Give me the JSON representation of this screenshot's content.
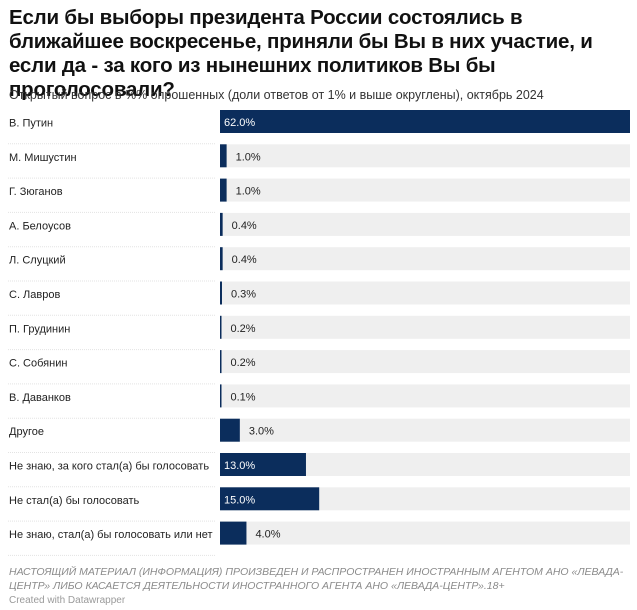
{
  "title": "Если бы выборы президента России состоялись в ближайшее воскресенье, приняли бы Вы в них участие, и если да - за кого из нынешних политиков Вы бы проголосовали?",
  "subtitle": "Открытый вопрос в %% опрошенных (доли ответов от 1% и выше округлены), октябрь 2024",
  "footer_note": "НАСТОЯЩИЙ МАТЕРИАЛ (ИНФОРМАЦИЯ) ПРОИЗВЕДЕН И РАСПРОСТРАНЕН ИНОСТРАННЫМ АГЕНТОМ АНО «ЛЕВАДА-ЦЕНТР» ЛИБО КАСАЕТСЯ ДЕЯТЕЛЬНОСТИ ИНОСТРАННОГО АГЕНТА АНО «ЛЕВАДА-ЦЕНТР».18+",
  "credit": "Created with Datawrapper",
  "colors": {
    "bar": "#0b2d5c",
    "track": "#efefef",
    "label_on_bar": "#ffffff",
    "label_off_bar": "#222222"
  },
  "chart_data": {
    "type": "bar",
    "orientation": "horizontal",
    "title": "Если бы выборы президента России состоялись в ближайшее воскресенье, приняли бы Вы в них участие, и если да - за кого из нынешних политиков Вы бы проголосовали?",
    "categories": [
      "В. Путин",
      "М. Мишустин",
      "Г. Зюганов",
      "А. Белоусов",
      "Л. Слуцкий",
      "С. Лавров",
      "П. Грудинин",
      "С. Собянин",
      "В. Даванков",
      "Другое",
      "Не знаю, за кого стал(а) бы голосовать",
      "Не стал(а) бы голосовать",
      "Не знаю, стал(а) бы голосовать или нет"
    ],
    "values": [
      62.0,
      1.0,
      1.0,
      0.4,
      0.4,
      0.3,
      0.2,
      0.2,
      0.1,
      3.0,
      13.0,
      15.0,
      4.0
    ],
    "value_labels": [
      "62.0%",
      "1.0%",
      "1.0%",
      "0.4%",
      "0.4%",
      "0.3%",
      "0.2%",
      "0.2%",
      "0.1%",
      "3.0%",
      "13.0%",
      "15.0%",
      "4.0%"
    ],
    "xlim": [
      0,
      62
    ],
    "grid": false,
    "legend": "none"
  }
}
